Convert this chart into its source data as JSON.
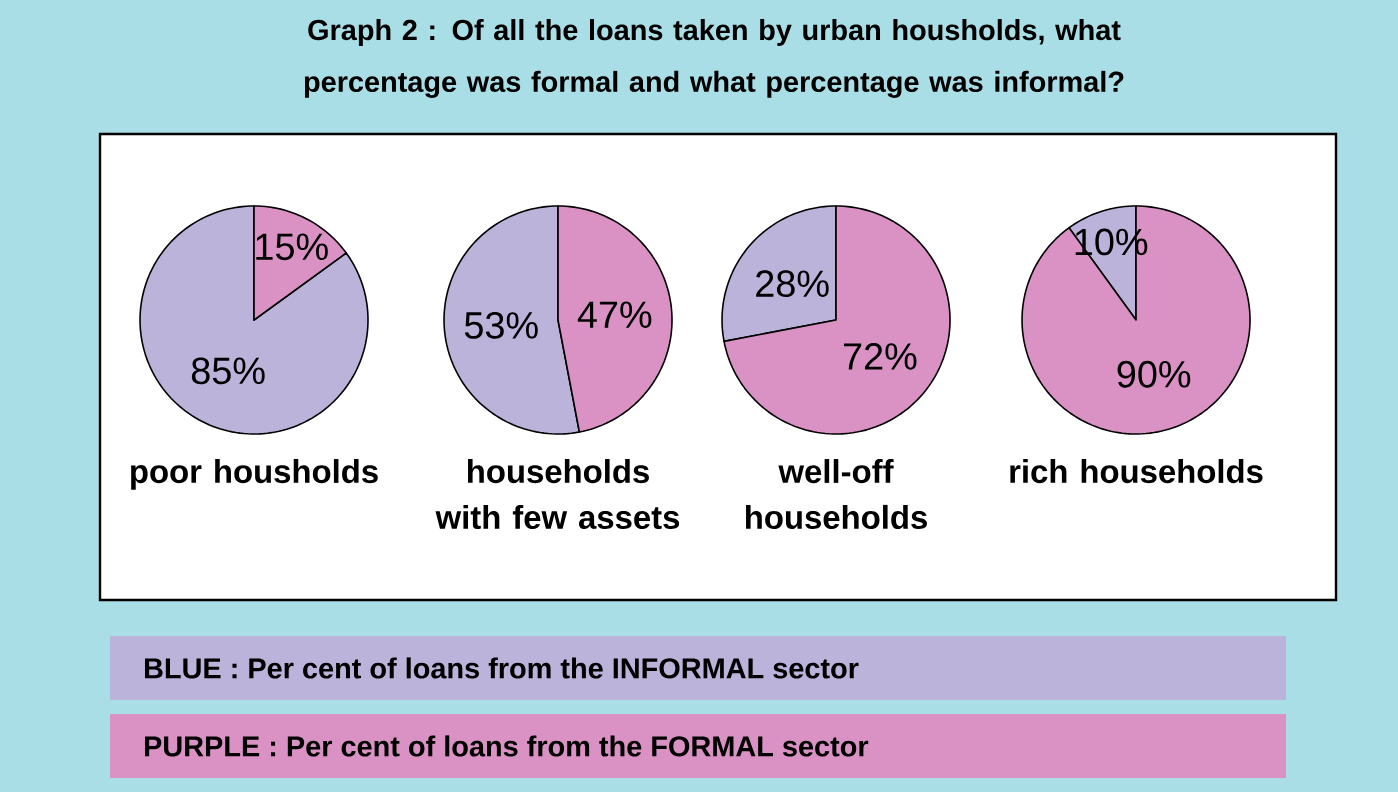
{
  "chart_data": [
    {
      "type": "pie",
      "title": "Graph 2 : Of all the loans taken by urban housholds, what percentage was formal and what percentage was informal?",
      "xlabel": "poor housholds",
      "categories": [
        "BLUE : Per cent of loans from the INFORMAL sector",
        "PURPLE : Per cent of loans from the FORMAL sector"
      ],
      "values": [
        85,
        15
      ],
      "value_labels": [
        "85%",
        "15%"
      ],
      "colors": [
        "#bbb3da",
        "#da92c4"
      ],
      "legend": "bottom"
    },
    {
      "type": "pie",
      "xlabel": "households with few assets",
      "categories": [
        null,
        null
      ],
      "values": [
        53,
        47
      ],
      "value_labels": [
        "53%",
        "47%"
      ],
      "colors": [
        "#bbb3da",
        "#da92c4"
      ]
    },
    {
      "type": "pie",
      "xlabel": "well-off households",
      "categories": [
        null,
        null
      ],
      "values": [
        28,
        72
      ],
      "value_labels": [
        "28%",
        "72%"
      ],
      "colors": [
        "#bbb3da",
        "#da92c4"
      ]
    },
    {
      "type": "pie",
      "xlabel": "rich households",
      "categories": [
        null,
        null
      ],
      "values": [
        10,
        90
      ],
      "value_labels": [
        "10%",
        "90%"
      ],
      "colors": [
        "#bbb3da",
        "#da92c4"
      ]
    }
  ]
}
